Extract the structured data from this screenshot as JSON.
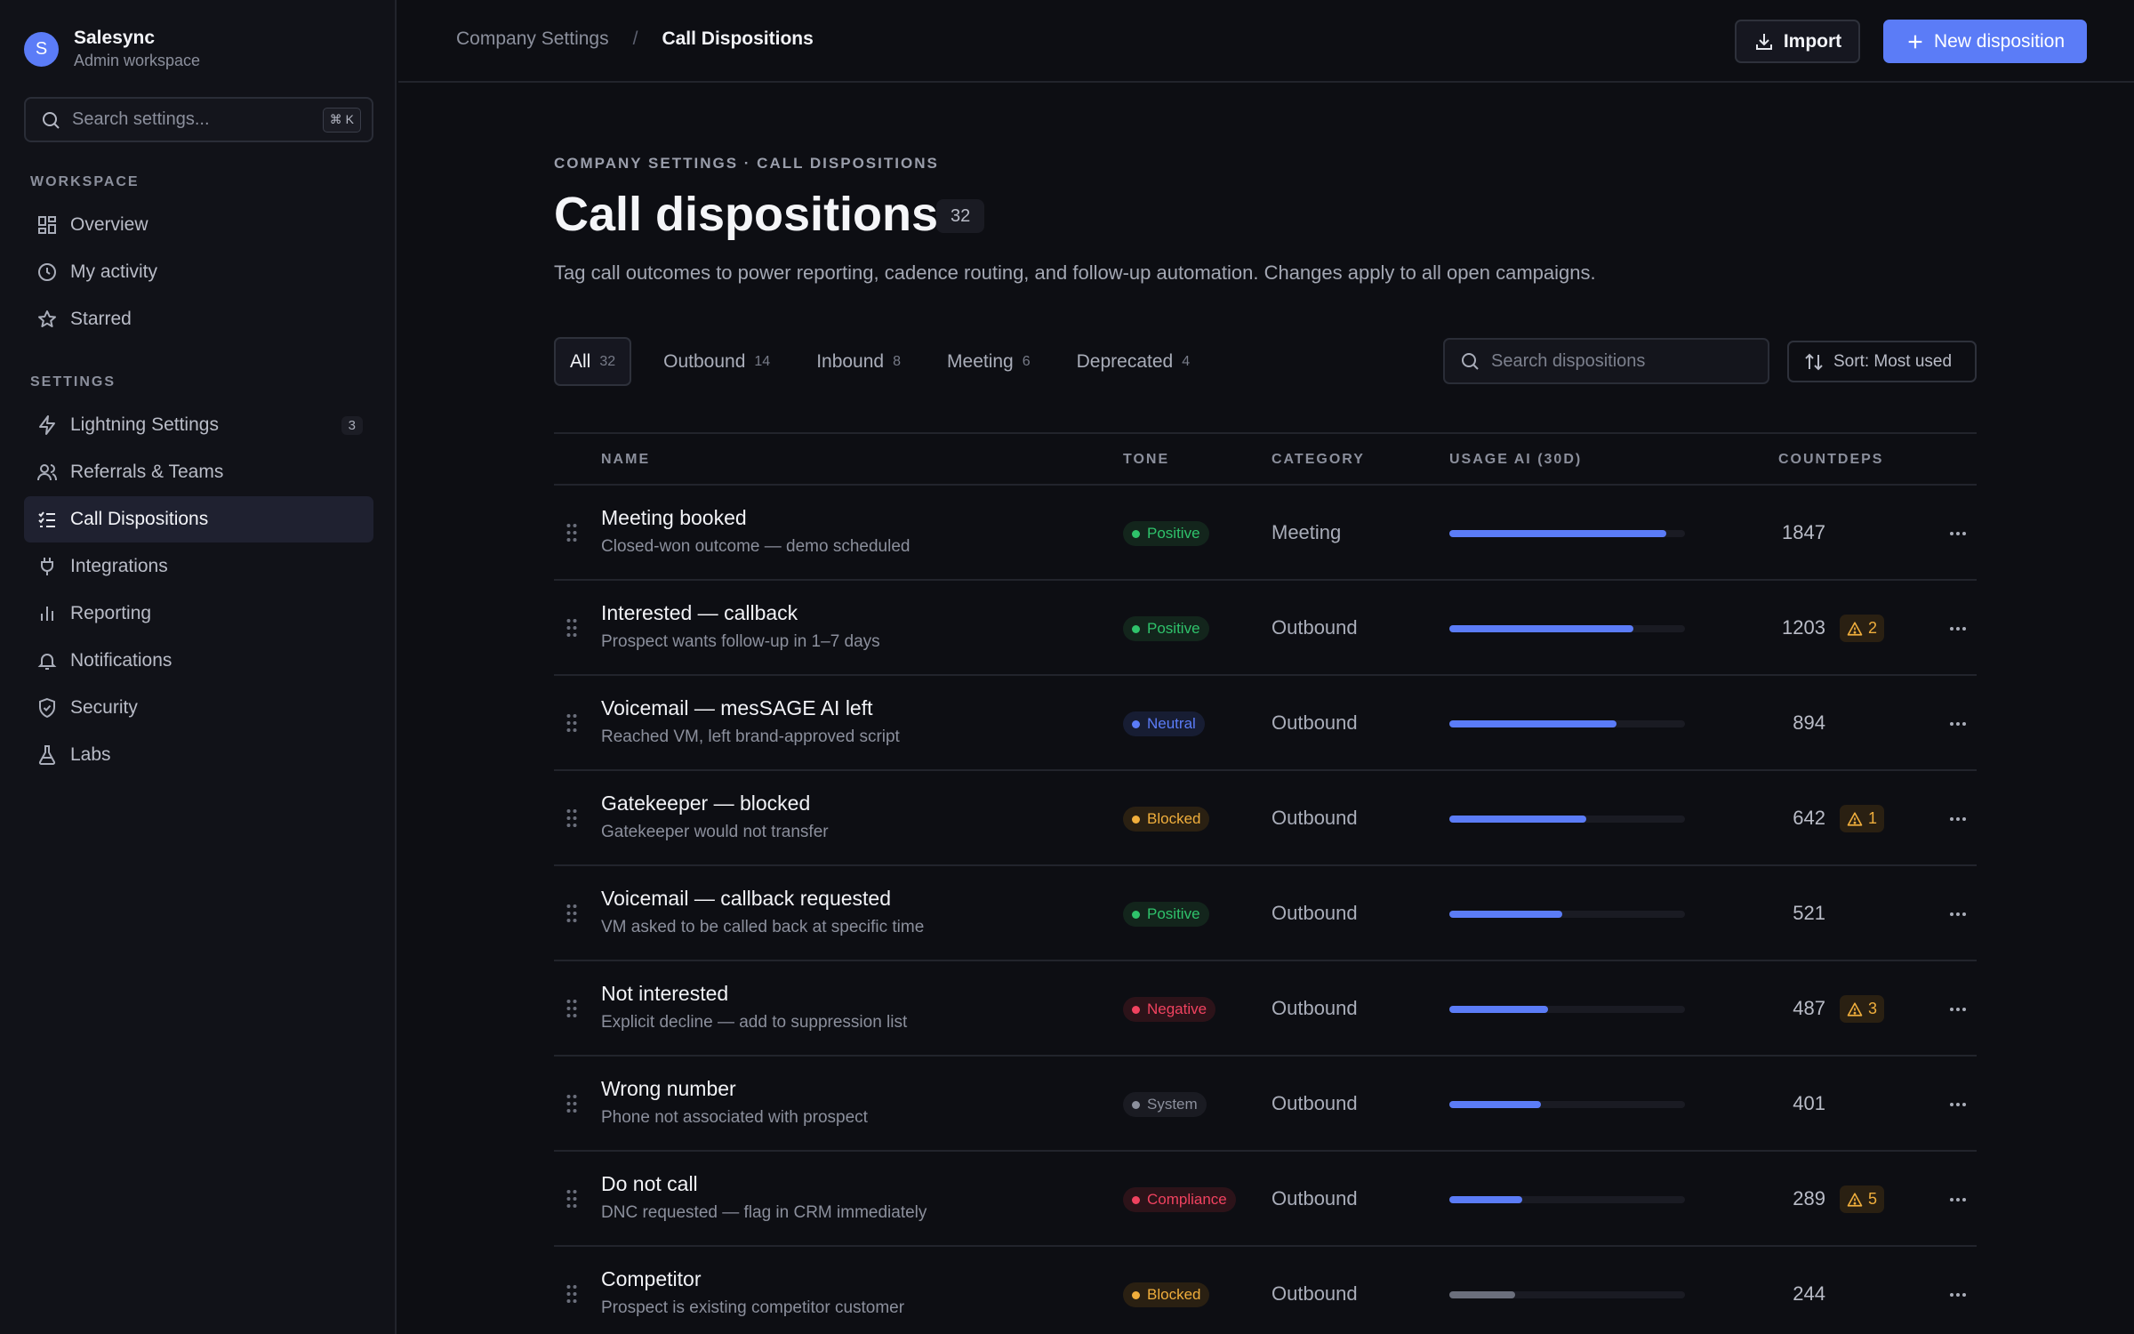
{
  "workspace": {
    "initial": "S",
    "name": "Salesync",
    "subtitle": "Admin workspace"
  },
  "sidebar": {
    "search_placeholder": "Search settings...",
    "shortcut": "⌘ K",
    "workspace_label": "WORKSPACE",
    "settings_label": "SETTINGS",
    "workspace_items": [
      {
        "label": "Overview",
        "icon": "grid-icon"
      },
      {
        "label": "My activity",
        "icon": "clock-icon"
      },
      {
        "label": "Starred",
        "icon": "star-icon"
      }
    ],
    "settings_items": [
      {
        "label": "Lightning Settings",
        "icon": "lightning-icon",
        "count": "3"
      },
      {
        "label": "Referrals & Teams",
        "icon": "users-icon"
      },
      {
        "label": "Call Dispositions",
        "icon": "checklist-icon",
        "active": true
      },
      {
        "label": "Integrations",
        "icon": "plug-icon"
      },
      {
        "label": "Reporting",
        "icon": "bar-chart-icon"
      },
      {
        "label": "Notifications",
        "icon": "bell-icon"
      },
      {
        "label": "Security",
        "icon": "shield-icon"
      },
      {
        "label": "Labs",
        "icon": "flask-icon"
      }
    ]
  },
  "topbar": {
    "breadcrumb": [
      "Company Settings",
      "/",
      "Call Dispositions"
    ],
    "import_label": "Import",
    "new_label": "New disposition"
  },
  "header": {
    "eyebrow": "COMPANY SETTINGS · CALL DISPOSITIONS",
    "title": "Call dispositions",
    "count": "32",
    "description": "Tag call outcomes to power reporting, cadence routing, and follow-up automation. Changes apply to all open campaigns."
  },
  "tabs": [
    {
      "label": "All",
      "count": "32",
      "active": true
    },
    {
      "label": "Outbound",
      "count": "14"
    },
    {
      "label": "Inbound",
      "count": "8"
    },
    {
      "label": "Meeting",
      "count": "6"
    },
    {
      "label": "Deprecated",
      "count": "4"
    }
  ],
  "toolbar": {
    "search_placeholder": "Search dispositions",
    "sort_label": "Sort: Most used"
  },
  "table": {
    "columns": [
      "NAME",
      "TONE",
      "CATEGORY",
      "USAGE AI (30D)",
      "COUNTDEPS"
    ],
    "rows": [
      {
        "name": "Meeting booked",
        "desc": "Closed-won outcome — demo scheduled",
        "tone": "Positive",
        "category": "Meeting",
        "usage": 0.92,
        "count": "1847",
        "warn": ""
      },
      {
        "name": "Interested — callback",
        "desc": "Prospect wants follow-up in 1–7 days",
        "tone": "Positive",
        "category": "Outbound",
        "usage": 0.78,
        "count": "1203",
        "warn": "2"
      },
      {
        "name": "Voicemail — mesSAGE AI left",
        "desc": "Reached VM, left brand-approved script",
        "tone": "Neutral",
        "category": "Outbound",
        "usage": 0.71,
        "count": "894",
        "warn": ""
      },
      {
        "name": "Gatekeeper — blocked",
        "desc": "Gatekeeper would not transfer",
        "tone": "Blocked",
        "category": "Outbound",
        "usage": 0.58,
        "count": "642",
        "warn": "1"
      },
      {
        "name": "Voicemail — callback requested",
        "desc": "VM asked to be called back at specific time",
        "tone": "Positive",
        "category": "Outbound",
        "usage": 0.48,
        "count": "521",
        "warn": ""
      },
      {
        "name": "Not interested",
        "desc": "Explicit decline — add to suppression list",
        "tone": "Negative",
        "category": "Outbound",
        "usage": 0.42,
        "count": "487",
        "warn": "3"
      },
      {
        "name": "Wrong number",
        "desc": "Phone not associated with prospect",
        "tone": "System",
        "category": "Outbound",
        "usage": 0.39,
        "count": "401",
        "warn": ""
      },
      {
        "name": "Do not call",
        "desc": "DNC requested — flag in CRM immediately",
        "tone": "Compliance",
        "category": "Outbound",
        "usage": 0.31,
        "count": "289",
        "warn": "5"
      },
      {
        "name": "Competitor",
        "desc": "Prospect is existing competitor customer",
        "tone": "Blocked",
        "category": "Outbound",
        "usage": 0.28,
        "count": "244",
        "warn": "",
        "muted": true
      }
    ]
  },
  "colors": {
    "accent": "#5b7cf7",
    "positive": "#2fc26b",
    "neutral": "#5b7cf7",
    "blocked": "#f0ae3c",
    "negative": "#f0425f",
    "system": "#8b8f9c",
    "compliance": "#f0425f"
  }
}
